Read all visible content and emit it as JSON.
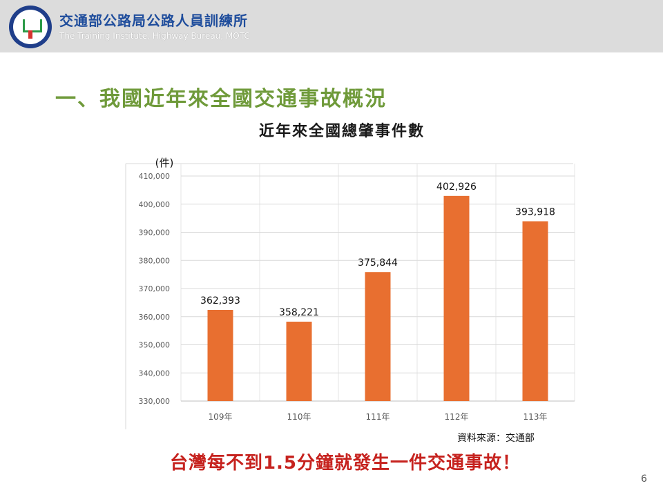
{
  "header": {
    "org_name_zh": "交通部公路局公路人員訓練所",
    "org_name_en": "The Training Institute, Highway Bureau, MOTC"
  },
  "slide": {
    "section_title": "一、我國近年來全國交通事故概況",
    "source_note": "資料來源：交通部",
    "tagline": "台灣每不到1.5分鐘就發生一件交通事故！",
    "page_number": "6"
  },
  "chart_data": {
    "type": "bar",
    "title": "近年來全國總肇事件數",
    "unit_label": "(件)",
    "categories": [
      "109年",
      "110年",
      "111年",
      "112年",
      "113年"
    ],
    "values": [
      362393,
      358221,
      375844,
      402926,
      393918
    ],
    "value_labels": [
      "362,393",
      "358,221",
      "375,844",
      "402,926",
      "393,918"
    ],
    "ylim": [
      330000,
      410000
    ],
    "yticks": [
      330000,
      340000,
      350000,
      360000,
      370000,
      380000,
      390000,
      400000,
      410000
    ],
    "ytick_labels": [
      "330,000",
      "340,000",
      "350,000",
      "360,000",
      "370,000",
      "380,000",
      "390,000",
      "400,000",
      "410,000"
    ],
    "grid": true,
    "bar_color": "#e86f30"
  }
}
